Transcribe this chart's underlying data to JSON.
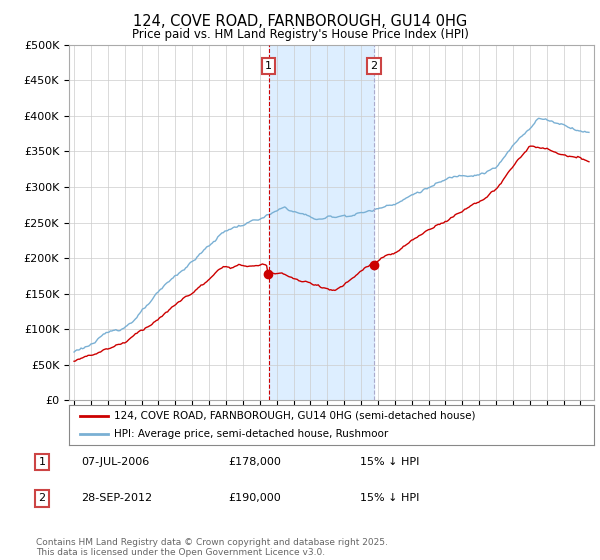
{
  "title": "124, COVE ROAD, FARNBOROUGH, GU14 0HG",
  "subtitle": "Price paid vs. HM Land Registry's House Price Index (HPI)",
  "ylabel_ticks": [
    "£0",
    "£50K",
    "£100K",
    "£150K",
    "£200K",
    "£250K",
    "£300K",
    "£350K",
    "£400K",
    "£450K",
    "£500K"
  ],
  "ytick_values": [
    0,
    50000,
    100000,
    150000,
    200000,
    250000,
    300000,
    350000,
    400000,
    450000,
    500000
  ],
  "ylim": [
    0,
    500000
  ],
  "red_color": "#cc0000",
  "blue_color": "#7ab0d4",
  "shaded_color": "#ddeeff",
  "vline1_color": "#cc0000",
  "vline2_color": "#aaaacc",
  "legend_line1": "124, COVE ROAD, FARNBOROUGH, GU14 0HG (semi-detached house)",
  "legend_line2": "HPI: Average price, semi-detached house, Rushmoor",
  "table_rows": [
    [
      "1",
      "07-JUL-2006",
      "£178,000",
      "15% ↓ HPI"
    ],
    [
      "2",
      "28-SEP-2012",
      "£190,000",
      "15% ↓ HPI"
    ]
  ],
  "footer": "Contains HM Land Registry data © Crown copyright and database right 2025.\nThis data is licensed under the Open Government Licence v3.0.",
  "background_color": "#ffffff",
  "grid_color": "#cccccc",
  "marker1_year": 2006.52,
  "marker2_year": 2012.75
}
